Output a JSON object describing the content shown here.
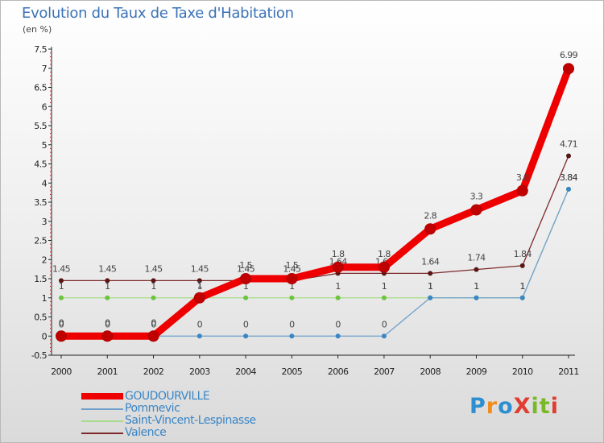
{
  "title": "Evolution du Taux de Taxe d'Habitation",
  "subtitle": "(en %)",
  "logo": {
    "text": "ProXiti",
    "letter_colors": [
      "#2e8fd0",
      "#f08c1e",
      "#2e8fd0",
      "#e03c32",
      "#7ab828",
      "#7ab828",
      "#e03c32"
    ]
  },
  "chart_data": {
    "type": "line",
    "x": [
      "2000",
      "2001",
      "2002",
      "2003",
      "2004",
      "2005",
      "2006",
      "2007",
      "2008",
      "2009",
      "2010",
      "2011"
    ],
    "ylim": [
      -0.5,
      7.5
    ],
    "yticks": [
      "-0.5",
      "0",
      "0.5",
      "1",
      "1.5",
      "2",
      "2.5",
      "3",
      "3.5",
      "4",
      "4.5",
      "5",
      "5.5",
      "6",
      "6.5",
      "7",
      "7.5"
    ],
    "grid": false,
    "legend_position": "bottom",
    "series": [
      {
        "name": "GOUDOURVILLE",
        "color": "#ee0000",
        "marker_color": "#c00000",
        "values": [
          0,
          0,
          0,
          1,
          1.5,
          1.5,
          1.8,
          1.8,
          2.8,
          3.3,
          3.8,
          6.99
        ],
        "labels": [
          "0",
          "0",
          "0",
          "1",
          "1.5",
          "1.5",
          "1.8",
          "1.8",
          "2.8",
          "3.3",
          "3.8",
          "6.99"
        ]
      },
      {
        "name": "Pommevic",
        "color": "#6fa0cc",
        "marker_color": "#3a85c5",
        "values": [
          0,
          0,
          0,
          0,
          0,
          0,
          0,
          0,
          1,
          1,
          1,
          3.84
        ],
        "labels": [
          "0",
          "0",
          "0",
          "0",
          "0",
          "0",
          "0",
          "0",
          "1",
          "1",
          "1",
          "3.84"
        ]
      },
      {
        "name": "Saint-Vincent-Lespinasse",
        "color": "#a6dc88",
        "marker_color": "#6cc43e",
        "values": [
          1,
          1,
          1,
          1,
          1,
          1,
          1,
          1,
          1,
          1,
          1,
          3.84
        ],
        "labels": [
          "1",
          "1",
          "1",
          "1",
          "1",
          "1",
          "1",
          "1",
          "1",
          "1",
          "1",
          "3.84"
        ]
      },
      {
        "name": "Valence",
        "color": "#7d2a2a",
        "marker_color": "#5a1515",
        "values": [
          1.45,
          1.45,
          1.45,
          1.45,
          1.45,
          1.45,
          1.64,
          1.64,
          1.64,
          1.74,
          1.84,
          4.71
        ],
        "labels": [
          "1.45",
          "1.45",
          "1.45",
          "1.45",
          "1.45",
          "1.45",
          "1.64",
          "1.64",
          "1.64",
          "1.74",
          "1.84",
          "4.71"
        ]
      }
    ]
  }
}
